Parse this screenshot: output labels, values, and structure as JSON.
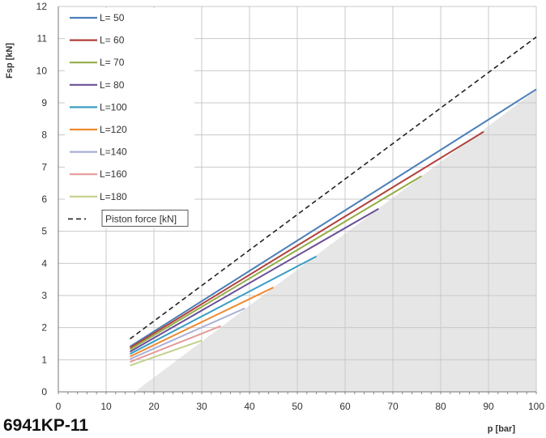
{
  "figure": {
    "caption": "6941KP-11"
  },
  "chart_data": {
    "type": "line",
    "xlabel": "p [bar]",
    "ylabel": "Fsp [kN]",
    "xlim": [
      0,
      100
    ],
    "ylim": [
      0,
      12
    ],
    "xticks": [
      "0",
      "10",
      "20",
      "30",
      "40",
      "50",
      "60",
      "70",
      "80",
      "90",
      "100"
    ],
    "yticks": [
      "0",
      "1",
      "2",
      "3",
      "4",
      "5",
      "6",
      "7",
      "8",
      "9",
      "10",
      "11",
      "12"
    ],
    "grid": true,
    "legend_position": "top-left",
    "shaded_region": {
      "color": "#e6e6e6",
      "polygon": [
        [
          16,
          0
        ],
        [
          100,
          0
        ],
        [
          100,
          9.4
        ]
      ]
    },
    "series": [
      {
        "name": "L= 50",
        "color": "#4a7fb8",
        "style": "solid",
        "points": [
          [
            15,
            1.41
          ],
          [
            100,
            9.42
          ]
        ]
      },
      {
        "name": "L= 60",
        "color": "#b0403c",
        "style": "solid",
        "points": [
          [
            15,
            1.37
          ],
          [
            89,
            8.1
          ]
        ]
      },
      {
        "name": "L= 70",
        "color": "#93ad46",
        "style": "solid",
        "points": [
          [
            15,
            1.32
          ],
          [
            76,
            6.72
          ]
        ]
      },
      {
        "name": "L= 80",
        "color": "#6b4f96",
        "style": "solid",
        "points": [
          [
            15,
            1.25
          ],
          [
            67,
            5.7
          ]
        ]
      },
      {
        "name": "L=100",
        "color": "#3a9ec4",
        "style": "solid",
        "points": [
          [
            15,
            1.18
          ],
          [
            54,
            4.22
          ]
        ]
      },
      {
        "name": "L=120",
        "color": "#ee8a30",
        "style": "solid",
        "points": [
          [
            15,
            1.1
          ],
          [
            45,
            3.25
          ]
        ]
      },
      {
        "name": "L=140",
        "color": "#a9b0d6",
        "style": "solid",
        "points": [
          [
            15,
            1.02
          ],
          [
            39,
            2.6
          ]
        ]
      },
      {
        "name": "L=160",
        "color": "#e49a98",
        "style": "solid",
        "points": [
          [
            15,
            0.93
          ],
          [
            34,
            2.05
          ]
        ]
      },
      {
        "name": "L=180",
        "color": "#c2d08c",
        "style": "solid",
        "points": [
          [
            15,
            0.82
          ],
          [
            30,
            1.6
          ]
        ]
      },
      {
        "name": "Piston force [kN]",
        "color": "#222222",
        "style": "dashed",
        "points": [
          [
            15,
            1.65
          ],
          [
            100,
            11.05
          ]
        ]
      }
    ]
  }
}
